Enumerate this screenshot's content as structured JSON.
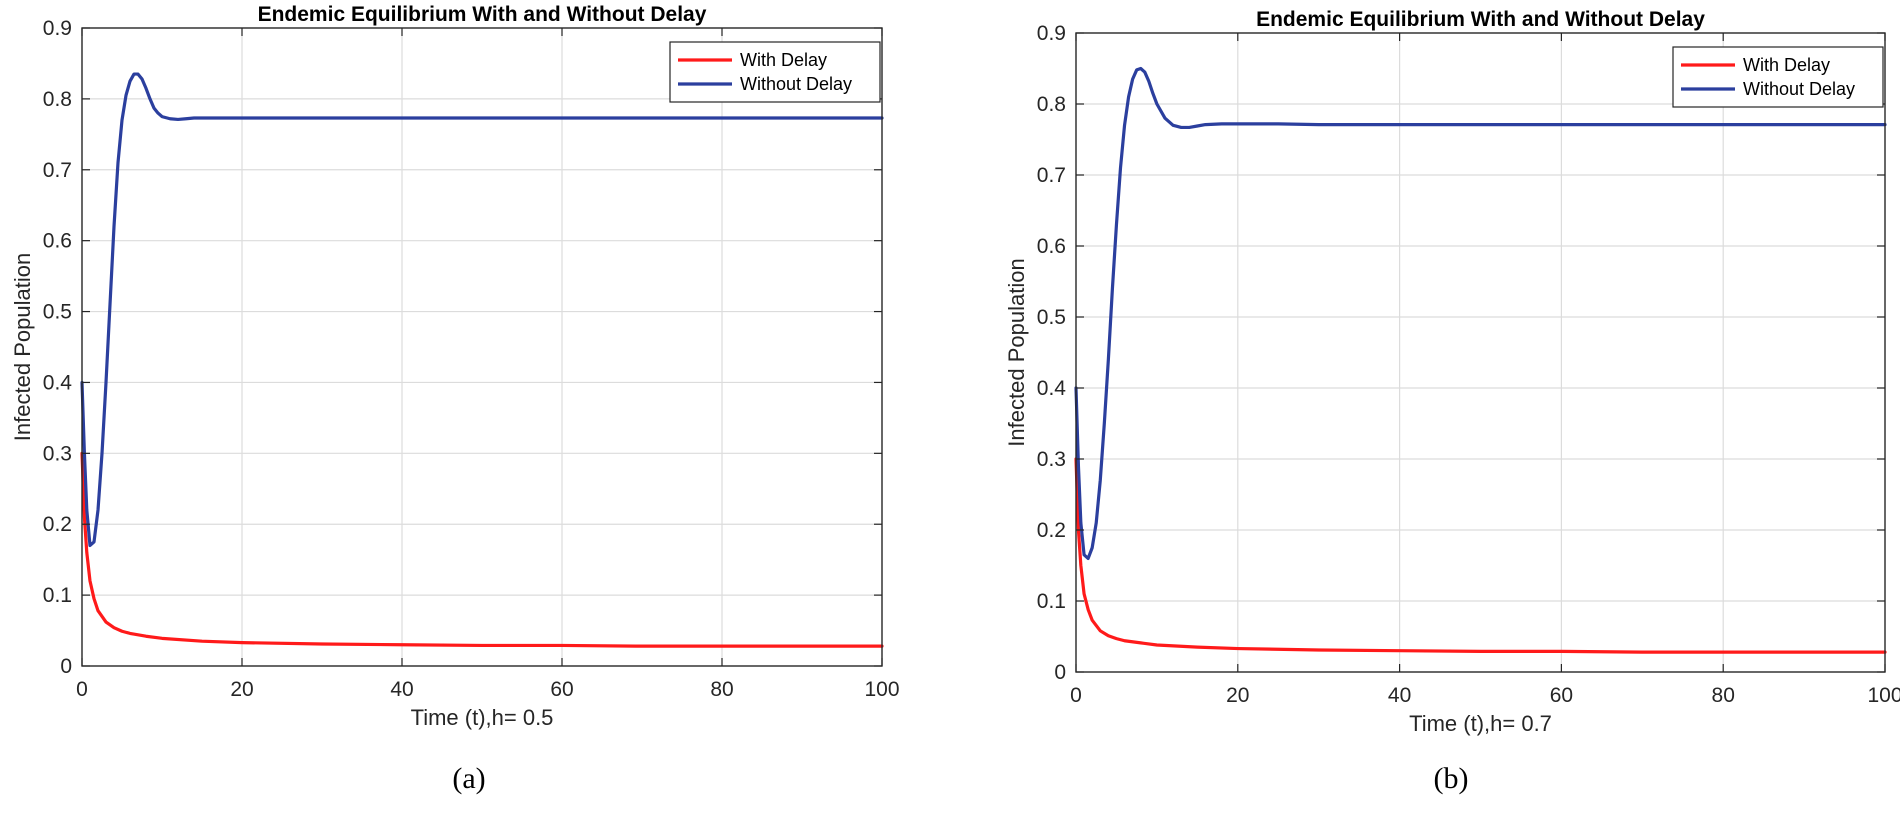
{
  "chart_data": [
    {
      "id": "a",
      "type": "line",
      "title": "Endemic Equilibrium With and Without Delay",
      "xlabel": "Time (t),h= 0.5",
      "ylabel": "Infected Population",
      "xlim": [
        0,
        100
      ],
      "ylim": [
        0,
        0.9
      ],
      "xticks": [
        0,
        20,
        40,
        60,
        80,
        100
      ],
      "yticks": [
        0,
        0.1,
        0.2,
        0.3,
        0.4,
        0.5,
        0.6,
        0.7,
        0.8,
        0.9
      ],
      "grid": true,
      "legend_position": "top-right",
      "caption": "(a)",
      "series": [
        {
          "name": "With Delay",
          "color": "#ff1a1a",
          "x": [
            0,
            0.3,
            0.6,
            1,
            1.5,
            2,
            3,
            4,
            5,
            6,
            8,
            10,
            15,
            20,
            30,
            40,
            50,
            60,
            70,
            80,
            90,
            100
          ],
          "y": [
            0.3,
            0.21,
            0.16,
            0.12,
            0.095,
            0.078,
            0.062,
            0.054,
            0.049,
            0.046,
            0.042,
            0.039,
            0.035,
            0.033,
            0.031,
            0.03,
            0.029,
            0.029,
            0.028,
            0.028,
            0.028,
            0.028
          ]
        },
        {
          "name": "Without Delay",
          "color": "#2b3f9e",
          "x": [
            0,
            0.3,
            0.6,
            1,
            1.5,
            2,
            2.5,
            3,
            3.5,
            4,
            4.5,
            5,
            5.5,
            6,
            6.5,
            7,
            7.5,
            8,
            8.5,
            9,
            9.5,
            10,
            11,
            12,
            13,
            14,
            16,
            20,
            30,
            40,
            50,
            60,
            70,
            80,
            90,
            100
          ],
          "y": [
            0.4,
            0.3,
            0.22,
            0.17,
            0.175,
            0.22,
            0.3,
            0.4,
            0.51,
            0.62,
            0.71,
            0.77,
            0.805,
            0.825,
            0.835,
            0.835,
            0.828,
            0.815,
            0.8,
            0.787,
            0.78,
            0.775,
            0.772,
            0.771,
            0.772,
            0.773,
            0.773,
            0.773,
            0.773,
            0.773,
            0.773,
            0.773,
            0.773,
            0.773,
            0.773,
            0.773
          ]
        }
      ]
    },
    {
      "id": "b",
      "type": "line",
      "title": "Endemic Equilibrium With and Without Delay",
      "xlabel": "Time (t),h= 0.7",
      "ylabel": "Infected Population",
      "xlim": [
        0,
        100
      ],
      "ylim": [
        0,
        0.9
      ],
      "xticks": [
        0,
        20,
        40,
        60,
        80,
        100
      ],
      "yticks": [
        0,
        0.1,
        0.2,
        0.3,
        0.4,
        0.5,
        0.6,
        0.7,
        0.8,
        0.9
      ],
      "grid": true,
      "legend_position": "top-right",
      "caption": "(b)",
      "series": [
        {
          "name": "With Delay",
          "color": "#ff1a1a",
          "x": [
            0,
            0.3,
            0.6,
            1,
            1.5,
            2,
            3,
            4,
            5,
            6,
            8,
            10,
            15,
            20,
            30,
            40,
            50,
            60,
            70,
            80,
            90,
            100
          ],
          "y": [
            0.3,
            0.2,
            0.15,
            0.11,
            0.088,
            0.073,
            0.058,
            0.051,
            0.047,
            0.044,
            0.041,
            0.038,
            0.035,
            0.033,
            0.031,
            0.03,
            0.029,
            0.029,
            0.028,
            0.028,
            0.028,
            0.028
          ]
        },
        {
          "name": "Without Delay",
          "color": "#2b3f9e",
          "x": [
            0,
            0.3,
            0.6,
            1,
            1.5,
            2,
            2.5,
            3,
            3.5,
            4,
            4.5,
            5,
            5.5,
            6,
            6.5,
            7,
            7.5,
            8,
            8.5,
            9,
            9.5,
            10,
            11,
            12,
            13,
            14,
            15,
            16,
            18,
            20,
            25,
            30,
            40,
            50,
            60,
            70,
            80,
            90,
            100
          ],
          "y": [
            0.4,
            0.29,
            0.21,
            0.165,
            0.16,
            0.175,
            0.21,
            0.27,
            0.35,
            0.44,
            0.54,
            0.63,
            0.71,
            0.77,
            0.81,
            0.835,
            0.848,
            0.85,
            0.845,
            0.832,
            0.815,
            0.8,
            0.78,
            0.77,
            0.767,
            0.767,
            0.769,
            0.771,
            0.772,
            0.772,
            0.772,
            0.771,
            0.771,
            0.771,
            0.771,
            0.771,
            0.771,
            0.771,
            0.771
          ]
        }
      ]
    }
  ]
}
